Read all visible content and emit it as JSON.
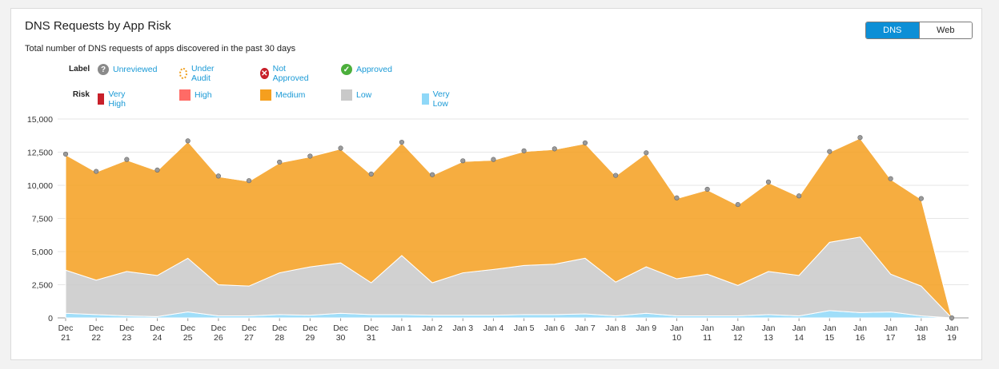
{
  "header": {
    "title": "DNS Requests by App Risk",
    "subtitle": "Total number of DNS requests of apps discovered in the past 30 days"
  },
  "toggle": {
    "dns_label": "DNS",
    "web_label": "Web",
    "selected": "DNS"
  },
  "legend": {
    "label_title": "Label",
    "labels": [
      {
        "name": "Unreviewed",
        "icon": "question-circle-icon",
        "color": "#8a8a8a"
      },
      {
        "name": "Under Audit",
        "icon": "dashed-circle-icon",
        "color": "#f0a020"
      },
      {
        "name": "Not Approved",
        "icon": "x-circle-icon",
        "color": "#c8202a"
      },
      {
        "name": "Approved",
        "icon": "check-circle-icon",
        "color": "#4caf3c"
      }
    ],
    "risk_title": "Risk",
    "risks": [
      {
        "name": "Very High",
        "color": "#c8202a"
      },
      {
        "name": "High",
        "color": "#ff6b66"
      },
      {
        "name": "Medium",
        "color": "#f59f1e"
      },
      {
        "name": "Low",
        "color": "#c9c9c9"
      },
      {
        "name": "Very Low",
        "color": "#8fd8f8"
      }
    ]
  },
  "chart_data": {
    "type": "area",
    "stacked": true,
    "title": "DNS Requests by App Risk",
    "ylim": [
      0,
      15000
    ],
    "yticks": [
      "0",
      "2,500",
      "5,000",
      "7,500",
      "10,000",
      "12,500",
      "15,000"
    ],
    "ytick_values": [
      0,
      2500,
      5000,
      7500,
      10000,
      12500,
      15000
    ],
    "grid": true,
    "categories": [
      [
        "Dec",
        "21"
      ],
      [
        "Dec",
        "22"
      ],
      [
        "Dec",
        "23"
      ],
      [
        "Dec",
        "24"
      ],
      [
        "Dec",
        "25"
      ],
      [
        "Dec",
        "26"
      ],
      [
        "Dec",
        "27"
      ],
      [
        "Dec",
        "28"
      ],
      [
        "Dec",
        "29"
      ],
      [
        "Dec",
        "30"
      ],
      [
        "Dec",
        "31"
      ],
      [
        "Jan 1",
        ""
      ],
      [
        "Jan 2",
        ""
      ],
      [
        "Jan 3",
        ""
      ],
      [
        "Jan 4",
        ""
      ],
      [
        "Jan 5",
        ""
      ],
      [
        "Jan 6",
        ""
      ],
      [
        "Jan 7",
        ""
      ],
      [
        "Jan 8",
        ""
      ],
      [
        "Jan 9",
        ""
      ],
      [
        "Jan",
        "10"
      ],
      [
        "Jan",
        "11"
      ],
      [
        "Jan",
        "12"
      ],
      [
        "Jan",
        "13"
      ],
      [
        "Jan",
        "14"
      ],
      [
        "Jan",
        "15"
      ],
      [
        "Jan",
        "16"
      ],
      [
        "Jan",
        "17"
      ],
      [
        "Jan",
        "18"
      ],
      [
        "Jan",
        "19"
      ]
    ],
    "series": [
      {
        "name": "Very Low",
        "color": "#8fd8f8",
        "values": [
          350,
          250,
          150,
          100,
          450,
          150,
          150,
          250,
          200,
          350,
          250,
          250,
          200,
          200,
          200,
          250,
          250,
          300,
          150,
          350,
          150,
          150,
          150,
          250,
          150,
          550,
          400,
          450,
          150,
          0
        ]
      },
      {
        "name": "Low",
        "color": "#c9c9c9",
        "values": [
          3250,
          2600,
          3350,
          3100,
          4050,
          2350,
          2250,
          3150,
          3650,
          3800,
          2400,
          4450,
          2450,
          3200,
          3450,
          3700,
          3800,
          4200,
          2550,
          3500,
          2800,
          3150,
          2300,
          3250,
          3050,
          5150,
          5700,
          2850,
          2250,
          0
        ]
      },
      {
        "name": "Medium",
        "color": "#f59f1e",
        "values": [
          8700,
          8150,
          8400,
          7900,
          8800,
          8150,
          7900,
          8300,
          8300,
          8600,
          8150,
          8500,
          8100,
          8400,
          8250,
          8600,
          8650,
          8650,
          8000,
          8550,
          6050,
          6350,
          6050,
          6700,
          5950,
          6800,
          7450,
          7150,
          6550,
          0
        ]
      },
      {
        "name": "High",
        "color": "#ff6b66",
        "values": [
          30,
          30,
          30,
          30,
          30,
          30,
          30,
          30,
          30,
          30,
          30,
          30,
          30,
          30,
          30,
          30,
          30,
          30,
          30,
          30,
          30,
          30,
          30,
          30,
          30,
          30,
          30,
          30,
          30,
          0
        ]
      },
      {
        "name": "Very High",
        "color": "#c8202a",
        "values": [
          20,
          20,
          20,
          20,
          20,
          20,
          20,
          20,
          20,
          20,
          20,
          20,
          20,
          20,
          20,
          20,
          20,
          20,
          20,
          20,
          20,
          20,
          20,
          20,
          20,
          20,
          20,
          20,
          20,
          0
        ]
      }
    ]
  }
}
